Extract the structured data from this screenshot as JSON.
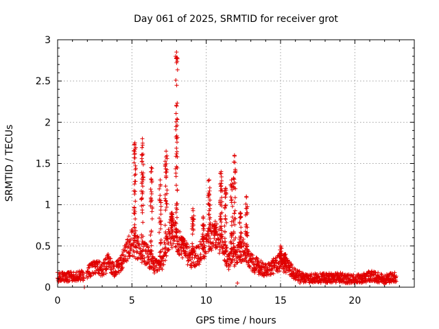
{
  "chart_data": {
    "type": "scatter",
    "title": "Day 061 of 2025, SRMTID for receiver grot",
    "xlabel": "GPS time / hours",
    "ylabel": "SRMTID / TECUs",
    "xlim": [
      0,
      24
    ],
    "ylim": [
      0,
      3
    ],
    "x_ticks": [
      0,
      5,
      10,
      15,
      20
    ],
    "y_ticks": [
      0,
      0.5,
      1,
      1.5,
      2,
      2.5,
      3
    ],
    "x_tick_labels": [
      "0",
      "5",
      "10",
      "15",
      "20"
    ],
    "y_tick_labels": [
      "0",
      "0.5",
      "1",
      "1.5",
      "2",
      "2.5",
      "3"
    ],
    "grid": true,
    "marker": "+",
    "color": "#e00000",
    "series": [
      {
        "name": "SRMTID",
        "baseline": [
          [
            0,
            0.12
          ],
          [
            1,
            0.13
          ],
          [
            1.8,
            0.14
          ],
          [
            2,
            0.18
          ],
          [
            2.6,
            0.25
          ],
          [
            3,
            0.2
          ],
          [
            3.4,
            0.3
          ],
          [
            3.8,
            0.2
          ],
          [
            4.3,
            0.3
          ],
          [
            4.7,
            0.45
          ],
          [
            5,
            0.55
          ],
          [
            5.5,
            0.45
          ],
          [
            6,
            0.4
          ],
          [
            6.5,
            0.25
          ],
          [
            7,
            0.3
          ],
          [
            7.5,
            0.65
          ],
          [
            8,
            0.6
          ],
          [
            8.5,
            0.45
          ],
          [
            9,
            0.35
          ],
          [
            9.5,
            0.4
          ],
          [
            10,
            0.5
          ],
          [
            10.5,
            0.65
          ],
          [
            11,
            0.55
          ],
          [
            11.5,
            0.3
          ],
          [
            12,
            0.4
          ],
          [
            12.5,
            0.45
          ],
          [
            13,
            0.3
          ],
          [
            13.5,
            0.25
          ],
          [
            14,
            0.2
          ],
          [
            14.5,
            0.25
          ],
          [
            15,
            0.3
          ],
          [
            15.5,
            0.25
          ],
          [
            16,
            0.15
          ],
          [
            16.5,
            0.12
          ],
          [
            17,
            0.11
          ],
          [
            18,
            0.11
          ],
          [
            19,
            0.12
          ],
          [
            19.5,
            0.1
          ],
          [
            20,
            0.1
          ],
          [
            20.5,
            0.1
          ],
          [
            21,
            0.14
          ],
          [
            21.5,
            0.12
          ],
          [
            22,
            0.1
          ],
          [
            22.5,
            0.12
          ],
          [
            22.8,
            0.12
          ]
        ],
        "peaks": [
          [
            5.2,
            1.75
          ],
          [
            5.7,
            1.8
          ],
          [
            6.3,
            1.45
          ],
          [
            6.9,
            1.3
          ],
          [
            7.3,
            1.65
          ],
          [
            7.7,
            0.9
          ],
          [
            8.0,
            2.85
          ],
          [
            8.4,
            0.6
          ],
          [
            9.1,
            0.95
          ],
          [
            9.8,
            0.85
          ],
          [
            10.2,
            1.3
          ],
          [
            10.6,
            0.75
          ],
          [
            11.0,
            1.4
          ],
          [
            11.3,
            1.2
          ],
          [
            11.7,
            1.3
          ],
          [
            11.9,
            1.6
          ],
          [
            12.3,
            0.9
          ],
          [
            12.7,
            1.1
          ],
          [
            15.0,
            0.5
          ],
          [
            15.3,
            0.4
          ]
        ],
        "outliers": [
          [
            1.8,
            0.0
          ],
          [
            16.3,
            0.05
          ],
          [
            12.1,
            0.05
          ]
        ]
      }
    ]
  }
}
